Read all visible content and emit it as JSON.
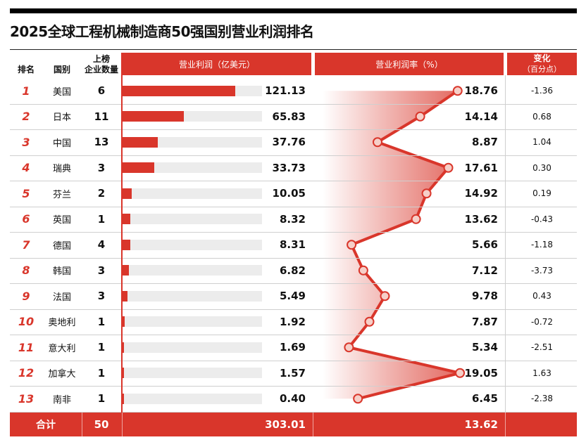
{
  "title": "2025全球工程机械制造商50强国别营业利润排名",
  "headers": {
    "rank": "排名",
    "country": "国别",
    "count_line1": "上榜",
    "count_line2": "企业数量",
    "profit": "营业利润（亿美元）",
    "margin": "营业利润率（%）",
    "change_line1": "变化",
    "change_line2": "（百分点）"
  },
  "chart_data": {
    "type": "table",
    "columns": [
      "排名",
      "国别",
      "上榜企业数量",
      "营业利润（亿美元）",
      "营业利润率（%）",
      "变化（百分点）"
    ],
    "rows": [
      {
        "rank": "1",
        "country": "美国",
        "count": "6",
        "profit": 121.13,
        "profit_label": "121.13",
        "margin": 18.76,
        "margin_label": "18.76",
        "change": "-1.36"
      },
      {
        "rank": "2",
        "country": "日本",
        "count": "11",
        "profit": 65.83,
        "profit_label": "65.83",
        "margin": 14.14,
        "margin_label": "14.14",
        "change": "0.68"
      },
      {
        "rank": "3",
        "country": "中国",
        "count": "13",
        "profit": 37.76,
        "profit_label": "37.76",
        "margin": 8.87,
        "margin_label": "8.87",
        "change": "1.04"
      },
      {
        "rank": "4",
        "country": "瑞典",
        "count": "3",
        "profit": 33.73,
        "profit_label": "33.73",
        "margin": 17.61,
        "margin_label": "17.61",
        "change": "0.30"
      },
      {
        "rank": "5",
        "country": "芬兰",
        "count": "2",
        "profit": 10.05,
        "profit_label": "10.05",
        "margin": 14.92,
        "margin_label": "14.92",
        "change": "0.19"
      },
      {
        "rank": "6",
        "country": "英国",
        "count": "1",
        "profit": 8.32,
        "profit_label": "8.32",
        "margin": 13.62,
        "margin_label": "13.62",
        "change": "-0.43"
      },
      {
        "rank": "7",
        "country": "德国",
        "count": "4",
        "profit": 8.31,
        "profit_label": "8.31",
        "margin": 5.66,
        "margin_label": "5.66",
        "change": "-1.18"
      },
      {
        "rank": "8",
        "country": "韩国",
        "count": "3",
        "profit": 6.82,
        "profit_label": "6.82",
        "margin": 7.12,
        "margin_label": "7.12",
        "change": "-3.73"
      },
      {
        "rank": "9",
        "country": "法国",
        "count": "3",
        "profit": 5.49,
        "profit_label": "5.49",
        "margin": 9.78,
        "margin_label": "9.78",
        "change": "0.43"
      },
      {
        "rank": "10",
        "country": "奥地利",
        "count": "1",
        "profit": 1.92,
        "profit_label": "1.92",
        "margin": 7.87,
        "margin_label": "7.87",
        "change": "-0.72"
      },
      {
        "rank": "11",
        "country": "意大利",
        "count": "1",
        "profit": 1.69,
        "profit_label": "1.69",
        "margin": 5.34,
        "margin_label": "5.34",
        "change": "-2.51"
      },
      {
        "rank": "12",
        "country": "加拿大",
        "count": "1",
        "profit": 1.57,
        "profit_label": "1.57",
        "margin": 19.05,
        "margin_label": "19.05",
        "change": "1.63"
      },
      {
        "rank": "13",
        "country": "南非",
        "count": "1",
        "profit": 0.4,
        "profit_label": "0.40",
        "margin": 6.45,
        "margin_label": "6.45",
        "change": "-2.38"
      }
    ],
    "total": {
      "label": "合计",
      "count": "50",
      "profit": "303.01",
      "margin": "13.62"
    },
    "profit_bar_max": 150,
    "margin_scale": [
      0,
      20
    ],
    "colors": {
      "accent": "#d9362b",
      "track": "#ececec"
    }
  }
}
